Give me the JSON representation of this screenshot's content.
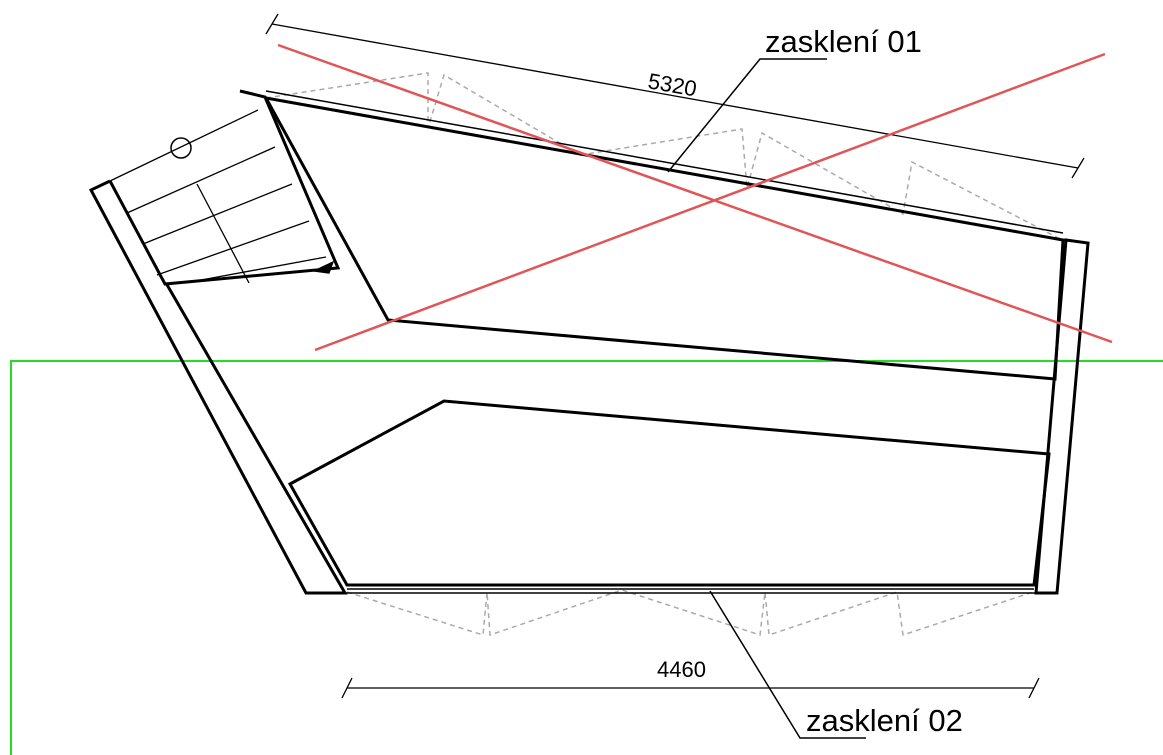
{
  "labels": {
    "glazing_01": "zasklení 01",
    "glazing_02": "zasklení 02"
  },
  "dimensions": {
    "top": "5320",
    "bottom": "4460"
  },
  "colors": {
    "outline": "#000000",
    "cross_out": "#e05555",
    "boundary": "#22dd22",
    "hidden_lines": "#aaaaaa"
  }
}
